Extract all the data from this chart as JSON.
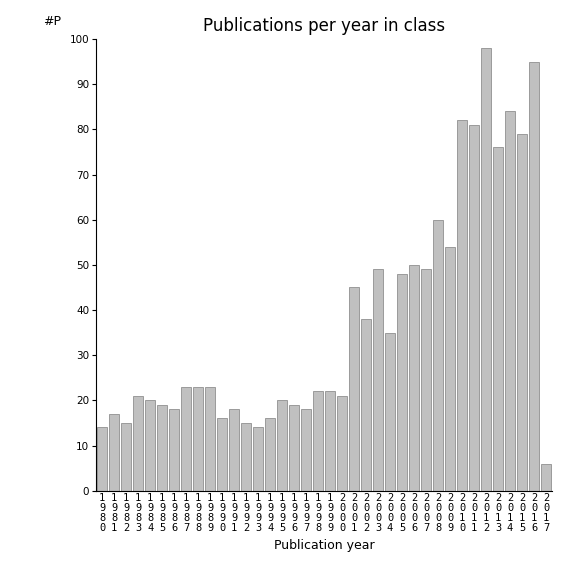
{
  "title": "Publications per year in class",
  "xlabel": "Publication year",
  "ylabel": "#P",
  "years": [
    "1980",
    "1981",
    "1982",
    "1983",
    "1984",
    "1985",
    "1986",
    "1987",
    "1988",
    "1989",
    "1990",
    "1991",
    "1992",
    "1993",
    "1994",
    "1995",
    "1996",
    "1997",
    "1998",
    "1999",
    "2000",
    "2001",
    "2002",
    "2003",
    "2004",
    "2005",
    "2006",
    "2007",
    "2008",
    "2009",
    "2010",
    "2011",
    "2012",
    "2013",
    "2014",
    "2015",
    "2016",
    "2017"
  ],
  "bar_values": [
    14,
    17,
    15,
    21,
    20,
    19,
    18,
    23,
    23,
    23,
    16,
    18,
    15,
    14,
    16,
    20,
    19,
    18,
    22,
    22,
    21,
    45,
    38,
    49,
    35,
    48,
    50,
    49,
    60,
    54,
    82,
    81,
    98,
    76,
    84,
    79,
    95,
    6
  ],
  "bar_color": "#c0c0c0",
  "bar_edge_color": "#808080",
  "ylim": [
    0,
    100
  ],
  "yticks": [
    0,
    10,
    20,
    30,
    40,
    50,
    60,
    70,
    80,
    90,
    100
  ],
  "bg_color": "#ffffff",
  "title_fontsize": 12,
  "axis_label_fontsize": 9,
  "tick_fontsize": 7.5
}
